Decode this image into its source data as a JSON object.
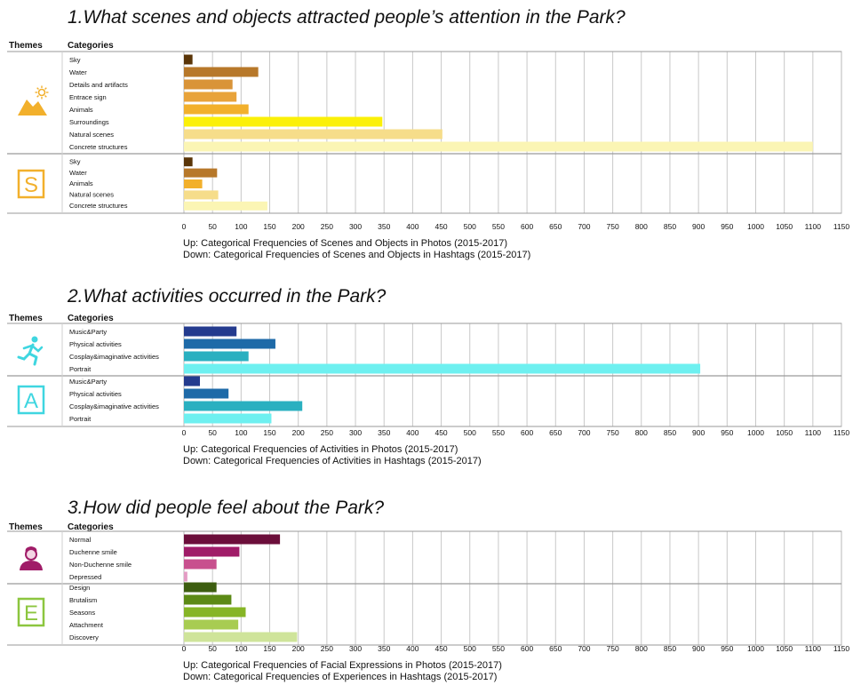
{
  "header_labels": {
    "themes": "Themes",
    "categories": "Categories"
  },
  "x_ticks": [
    0,
    50,
    100,
    150,
    200,
    250,
    300,
    350,
    400,
    450,
    500,
    550,
    600,
    650,
    700,
    750,
    800,
    850,
    900,
    950,
    1000,
    1050,
    1100,
    1150
  ],
  "chart_data": [
    {
      "type": "bar",
      "title": "1.What scenes and objects attracted people’s attention in the Park?",
      "xlim": [
        0,
        1150
      ],
      "groups": [
        {
          "name": "Up",
          "icon": "mountain-sun-icon",
          "categories": [
            "Sky",
            "Water",
            "Details and artifacts",
            "Entrace sign",
            "Animals",
            "Surroundings",
            "Natural scenes",
            "Concrete structures"
          ],
          "values": [
            15,
            130,
            85,
            92,
            113,
            347,
            452,
            1100
          ],
          "colors": [
            "#5a3508",
            "#b7782a",
            "#d99438",
            "#e8a33a",
            "#f2b02c",
            "#fbf008",
            "#f6dd8a",
            "#fbf5b4"
          ]
        },
        {
          "name": "Down",
          "icon": "letter-s-icon",
          "icon_letter": "S",
          "categories": [
            "Sky",
            "Water",
            "Animals",
            "Natural scenes",
            "Concrete structures"
          ],
          "values": [
            15,
            58,
            32,
            60,
            146
          ],
          "colors": [
            "#5a3508",
            "#b7782a",
            "#f2b02c",
            "#f6dd8a",
            "#fbf5b4"
          ]
        }
      ],
      "captions": [
        "Up: Categorical Frequencies of Scenes and Objects in Photos (2015-2017)",
        "Down: Categorical Frequencies of Scenes and Objects in Hashtags (2015-2017)"
      ],
      "accent": "#f2b02c"
    },
    {
      "type": "bar",
      "title": "2.What activities occurred in the Park?",
      "xlim": [
        0,
        1150
      ],
      "groups": [
        {
          "name": "Up",
          "icon": "running-person-icon",
          "categories": [
            "Music&Party",
            "Physical activities",
            "Cosplay&imaginative activities",
            "Portrait"
          ],
          "values": [
            92,
            160,
            113,
            903
          ],
          "colors": [
            "#243b8e",
            "#1e6aa8",
            "#2ab0c0",
            "#6ef0f0"
          ]
        },
        {
          "name": "Down",
          "icon": "letter-a-icon",
          "icon_letter": "A",
          "categories": [
            "Music&Party",
            "Physical activities",
            "Cosplay&imaginative activities",
            "Portrait"
          ],
          "values": [
            28,
            78,
            207,
            153
          ],
          "colors": [
            "#243b8e",
            "#1e6aa8",
            "#2ab0c0",
            "#6ef0f0"
          ]
        }
      ],
      "captions": [
        "Up: Categorical Frequencies of Activities in Photos (2015-2017)",
        "Down: Categorical Frequencies of Activities in Hashtags (2015-2017)"
      ],
      "accent": "#3fd6e0"
    },
    {
      "type": "bar",
      "title": "3.How did people feel about the Park?",
      "xlim": [
        0,
        1150
      ],
      "groups": [
        {
          "name": "Up",
          "icon": "person-icon",
          "categories": [
            "Normal",
            "Duchenne smile",
            "Non-Duchenne smile",
            "Depressed"
          ],
          "values": [
            168,
            97,
            57,
            6
          ],
          "colors": [
            "#6b0e3a",
            "#a01c68",
            "#c8508e",
            "#e49cc4"
          ]
        },
        {
          "name": "Down",
          "icon": "letter-e-icon",
          "icon_letter": "E",
          "categories": [
            "Design",
            "Brutalism",
            "Seasons",
            "Attachment",
            "Discovery"
          ],
          "values": [
            57,
            83,
            108,
            95,
            198
          ],
          "colors": [
            "#3d5e10",
            "#5c8a16",
            "#86b526",
            "#a8cc52",
            "#cfe49a"
          ]
        }
      ],
      "captions": [
        "Up: Categorical Frequencies of Facial Expressions in Photos (2015-2017)",
        "Down: Categorical Frequencies of Experiences in Hashtags (2015-2017)"
      ],
      "accent": "#8cc63f"
    }
  ]
}
